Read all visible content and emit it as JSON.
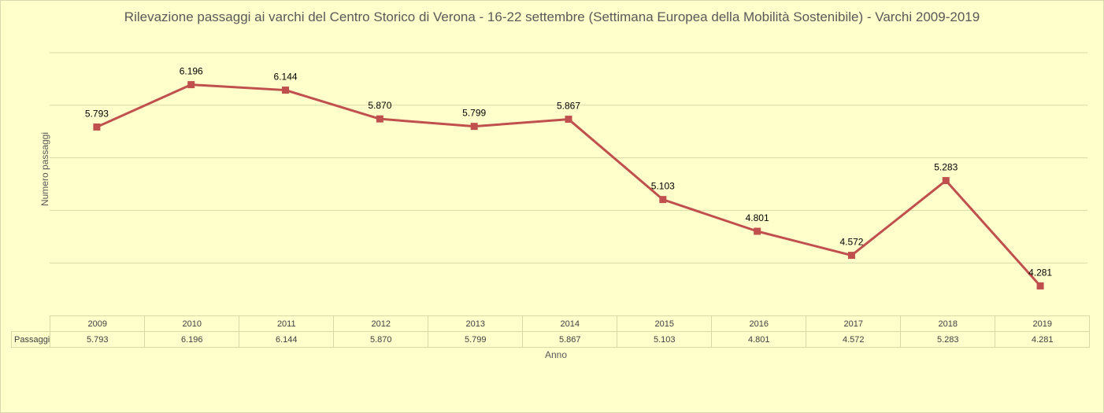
{
  "chart_data": {
    "type": "line",
    "title": "Rilevazione passaggi ai varchi del Centro Storico di Verona - 16-22 settembre (Settimana Europea della Mobilità Sostenibile) - Varchi 2009-2019",
    "xlabel": "Anno",
    "ylabel": "Numero passaggi",
    "categories": [
      "2009",
      "2010",
      "2011",
      "2012",
      "2013",
      "2014",
      "2015",
      "2016",
      "2017",
      "2018",
      "2019"
    ],
    "series": [
      {
        "name": "Passaggi",
        "values": [
          5793,
          6196,
          6144,
          5870,
          5799,
          5867,
          5103,
          4801,
          4572,
          5283,
          4281
        ],
        "labels": [
          "5.793",
          "6.196",
          "6.144",
          "5.870",
          "5.799",
          "5.867",
          "5.103",
          "4.801",
          "4.572",
          "5.283",
          "4.281"
        ],
        "color": "#c0504d"
      }
    ],
    "ylim": [
      4000,
      6500
    ],
    "grid": true,
    "legend": "none",
    "data_table": true
  }
}
